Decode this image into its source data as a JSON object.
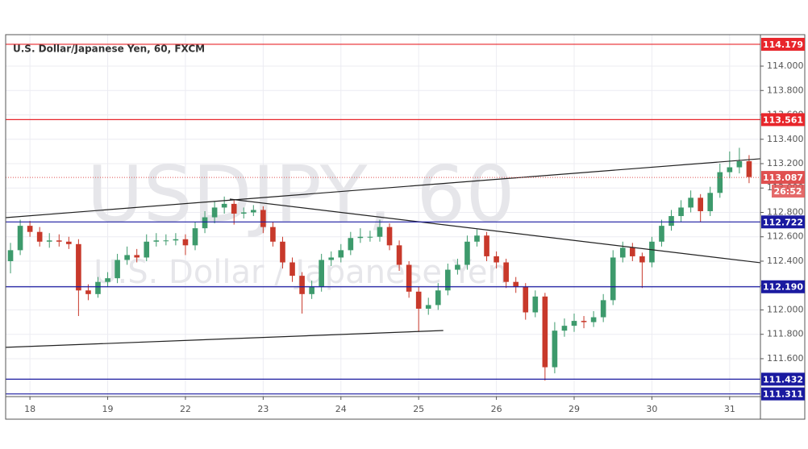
{
  "chart_data": {
    "type": "candlestick",
    "title": "U.S. Dollar/Japanese Yen, 60, FXCM",
    "watermark": [
      "USDJPY, 60",
      "U.S. Dollar / Japanese Yen"
    ],
    "xlim": [
      -7.5,
      225.5
    ],
    "ylim": [
      111.289,
      114.258
    ],
    "xticks": [
      {
        "value": 0,
        "label": "18"
      },
      {
        "value": 24,
        "label": "19"
      },
      {
        "value": 48,
        "label": "22"
      },
      {
        "value": 72,
        "label": "23"
      },
      {
        "value": 96,
        "label": "24"
      },
      {
        "value": 120,
        "label": "25"
      },
      {
        "value": 144,
        "label": "26"
      },
      {
        "value": 168,
        "label": "29"
      },
      {
        "value": 192,
        "label": "30"
      },
      {
        "value": 216,
        "label": "31"
      }
    ],
    "yticks": [
      {
        "value": 111.6,
        "label": "111.600"
      },
      {
        "value": 111.8,
        "label": "111.800"
      },
      {
        "value": 112.0,
        "label": "112.000"
      },
      {
        "value": 112.2,
        "label": "112.200"
      },
      {
        "value": 112.4,
        "label": "112.400"
      },
      {
        "value": 112.6,
        "label": "112.600"
      },
      {
        "value": 112.8,
        "label": "112.800"
      },
      {
        "value": 113.0,
        "label": "113.000"
      },
      {
        "value": 113.2,
        "label": "113.200"
      },
      {
        "value": 113.4,
        "label": "113.400"
      },
      {
        "value": 113.6,
        "label": "113.600"
      },
      {
        "value": 113.8,
        "label": "113.800"
      },
      {
        "value": 114.0,
        "label": "114.000"
      }
    ],
    "grid": true,
    "up_color": "#3d9a6c",
    "down_color": "#c8392b",
    "x": [
      -6,
      -3,
      0,
      3,
      6,
      9,
      12,
      15,
      18,
      21,
      24,
      27,
      30,
      33,
      36,
      39,
      42,
      45,
      48,
      51,
      54,
      57,
      60,
      63,
      66,
      69,
      72,
      75,
      78,
      81,
      84,
      87,
      90,
      93,
      96,
      99,
      102,
      105,
      108,
      111,
      114,
      117,
      120,
      123,
      126,
      129,
      132,
      135,
      138,
      141,
      144,
      147,
      150,
      153,
      156,
      159,
      162,
      165,
      168,
      171,
      174,
      177,
      180,
      183,
      186,
      189,
      192,
      195,
      198,
      201,
      204,
      207,
      210,
      213,
      216,
      219,
      222
    ],
    "open": [
      112.4,
      112.49,
      112.69,
      112.64,
      112.56,
      112.57,
      112.56,
      112.54,
      112.16,
      112.13,
      112.23,
      112.26,
      112.41,
      112.45,
      112.43,
      112.56,
      112.57,
      112.57,
      112.58,
      112.53,
      112.67,
      112.76,
      112.84,
      112.87,
      112.79,
      112.8,
      112.82,
      112.68,
      112.56,
      112.39,
      112.28,
      112.13,
      112.19,
      112.41,
      112.43,
      112.49,
      112.59,
      112.6,
      112.6,
      112.68,
      112.53,
      112.37,
      112.15,
      112.01,
      112.04,
      112.16,
      112.33,
      112.37,
      112.56,
      112.61,
      112.44,
      112.39,
      112.23,
      112.19,
      111.98,
      112.11,
      111.53,
      111.83,
      111.87,
      111.91,
      111.9,
      111.94,
      112.08,
      112.43,
      112.51,
      112.44,
      112.39,
      112.56,
      112.69,
      112.77,
      112.84,
      112.92,
      112.81,
      112.96,
      113.13,
      113.17,
      113.22
    ],
    "high": [
      112.55,
      112.74,
      112.73,
      112.68,
      112.63,
      112.62,
      112.6,
      112.58,
      112.21,
      112.27,
      112.31,
      112.46,
      112.52,
      112.5,
      112.62,
      112.63,
      112.62,
      112.63,
      112.62,
      112.72,
      112.81,
      112.89,
      112.93,
      112.9,
      112.84,
      112.86,
      112.85,
      112.72,
      112.6,
      112.43,
      112.31,
      112.24,
      112.46,
      112.48,
      112.54,
      112.64,
      112.67,
      112.65,
      112.74,
      112.71,
      112.57,
      112.4,
      112.19,
      112.1,
      112.22,
      112.38,
      112.42,
      112.61,
      112.66,
      112.64,
      112.48,
      112.42,
      112.27,
      112.22,
      112.16,
      112.14,
      111.9,
      111.93,
      111.97,
      111.95,
      111.99,
      112.13,
      112.49,
      112.56,
      112.55,
      112.47,
      112.6,
      112.74,
      112.82,
      112.9,
      112.98,
      112.95,
      113.01,
      113.2,
      113.3,
      113.33,
      113.27
    ],
    "low": [
      112.3,
      112.45,
      112.6,
      112.52,
      112.51,
      112.52,
      112.5,
      111.95,
      112.08,
      112.1,
      112.19,
      112.22,
      112.37,
      112.39,
      112.4,
      112.52,
      112.53,
      112.53,
      112.45,
      112.49,
      112.63,
      112.71,
      112.79,
      112.7,
      112.75,
      112.77,
      112.63,
      112.52,
      112.34,
      112.23,
      111.97,
      112.09,
      112.15,
      112.36,
      112.39,
      112.45,
      112.55,
      112.56,
      112.56,
      112.49,
      112.32,
      112.1,
      111.82,
      111.96,
      112.0,
      112.12,
      112.29,
      112.33,
      112.52,
      112.4,
      112.34,
      112.18,
      112.14,
      111.92,
      111.94,
      111.42,
      111.48,
      111.78,
      111.82,
      111.85,
      111.86,
      111.9,
      112.04,
      112.39,
      112.4,
      112.18,
      112.35,
      112.52,
      112.65,
      112.72,
      112.8,
      112.72,
      112.77,
      112.92,
      113.08,
      113.12,
      113.04
    ],
    "close": [
      112.49,
      112.69,
      112.64,
      112.56,
      112.57,
      112.56,
      112.54,
      112.16,
      112.13,
      112.23,
      112.26,
      112.41,
      112.45,
      112.43,
      112.56,
      112.57,
      112.57,
      112.58,
      112.53,
      112.67,
      112.76,
      112.84,
      112.87,
      112.79,
      112.8,
      112.82,
      112.68,
      112.56,
      112.39,
      112.28,
      112.13,
      112.19,
      112.41,
      112.43,
      112.49,
      112.59,
      112.6,
      112.6,
      112.68,
      112.53,
      112.37,
      112.15,
      112.01,
      112.04,
      112.16,
      112.33,
      112.37,
      112.56,
      112.61,
      112.44,
      112.39,
      112.23,
      112.19,
      111.98,
      112.11,
      111.53,
      111.83,
      111.87,
      111.91,
      111.9,
      111.94,
      112.08,
      112.43,
      112.51,
      112.44,
      112.39,
      112.56,
      112.69,
      112.77,
      112.84,
      112.92,
      112.81,
      112.96,
      113.13,
      113.17,
      113.22,
      113.09
    ],
    "trendlines": [
      {
        "x": [
          -7.5,
          225.5
        ],
        "y": [
          112.757,
          113.24
        ]
      },
      {
        "x": [
          61.7,
          225.5
        ],
        "y": [
          112.909,
          112.387
        ]
      },
      {
        "x": [
          -7.5,
          127.6
        ],
        "y": [
          111.693,
          111.831
        ]
      }
    ],
    "levels": [
      {
        "value": 114.179,
        "color": "#e8262b"
      },
      {
        "value": 113.561,
        "color": "#e8262b"
      },
      {
        "value": 112.722,
        "color": "#1a1aa0"
      },
      {
        "value": 112.19,
        "label": "112.190",
        "color": "#1a1aa0"
      },
      {
        "value": 111.432,
        "color": "#1a1aa0"
      },
      {
        "value": 111.311,
        "color": "#1a1aa0"
      }
    ],
    "current": {
      "value": 113.087,
      "color": "#e05050",
      "countdown": "26:52"
    }
  }
}
